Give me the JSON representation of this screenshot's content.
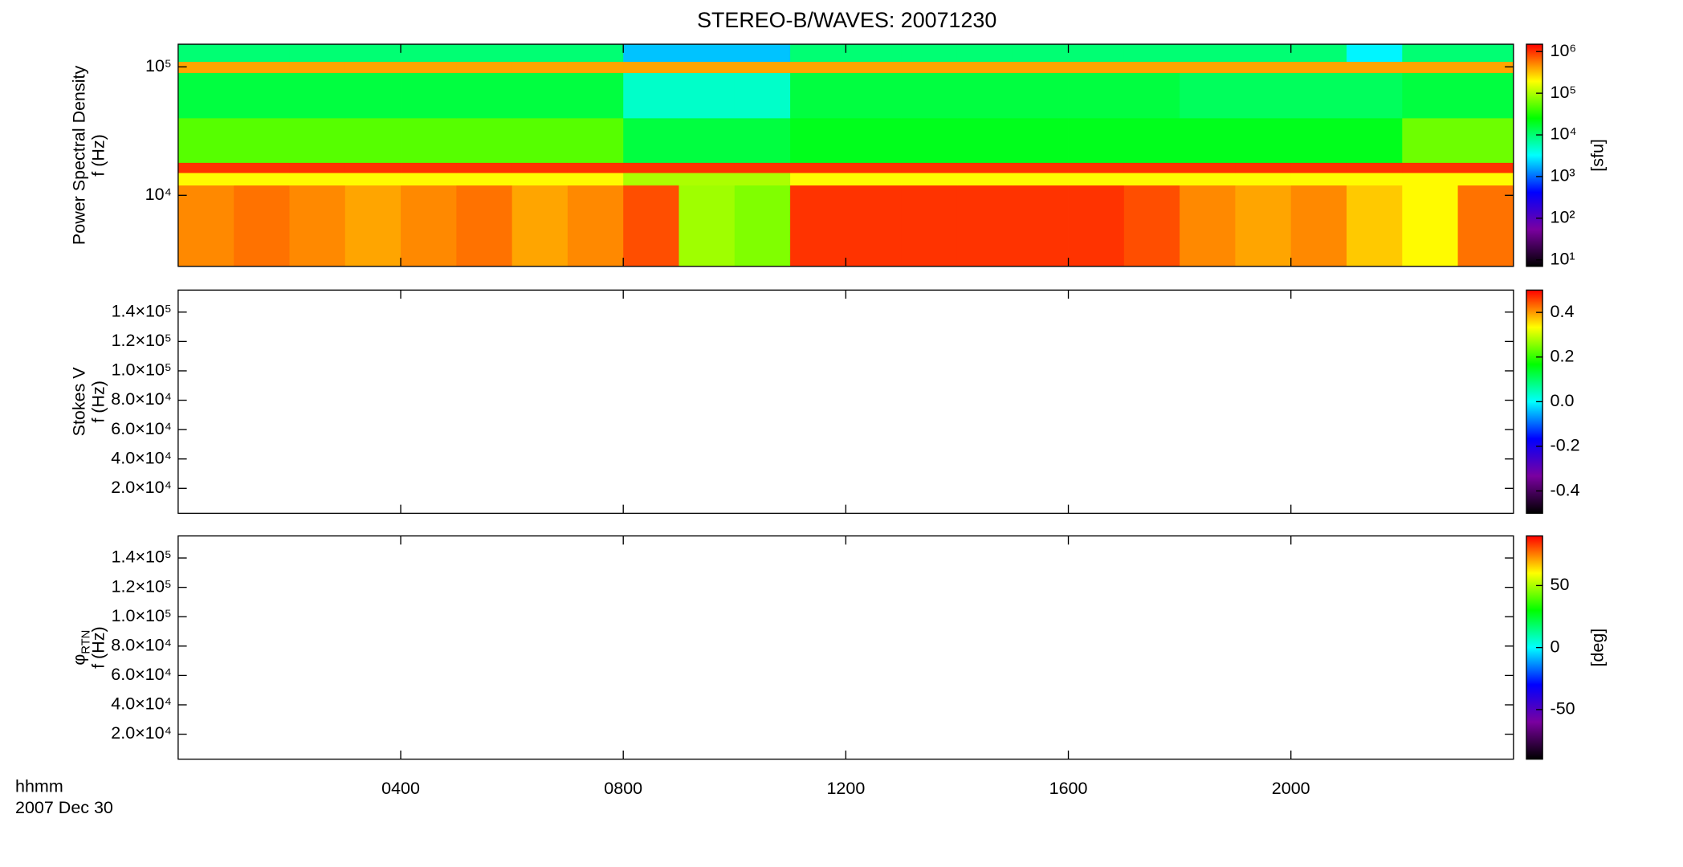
{
  "title": "STEREO-B/WAVES: 20071230",
  "x_axis": {
    "xlim": [
      0,
      24
    ],
    "xticks": [
      {
        "value": 4,
        "label": "0400"
      },
      {
        "value": 8,
        "label": "0800"
      },
      {
        "value": 12,
        "label": "1200"
      },
      {
        "value": 16,
        "label": "1600"
      },
      {
        "value": 20,
        "label": "2000"
      }
    ],
    "label": "hhmm",
    "date": "2007 Dec 30"
  },
  "colormap": [
    "#000000",
    "#7a00a0",
    "#0000ff",
    "#00ffff",
    "#00ff00",
    "#ffff00",
    "#ff0000"
  ],
  "chart_data": [
    {
      "type": "heatmap",
      "ylabel": "Power Spectral Density",
      "ylabel2": "f (Hz)",
      "ylog": true,
      "ylim": [
        2800,
        150000
      ],
      "yticks": [
        {
          "value": 10000,
          "label": "10⁴"
        },
        {
          "value": 100000,
          "label": "10⁵"
        }
      ],
      "xbins": [
        0,
        1,
        2,
        3,
        4,
        5,
        6,
        7,
        8,
        9,
        10,
        11,
        12,
        13,
        14,
        15,
        16,
        17,
        18,
        19,
        20,
        21,
        22,
        23,
        24
      ],
      "ybins": [
        2800,
        12000,
        15000,
        18000,
        40000,
        90000,
        110000,
        150000
      ],
      "values": [
        [
          500000,
          600000,
          500000,
          400000,
          500000,
          600000,
          400000,
          500000,
          800000,
          90000,
          70000,
          1000000,
          1000000,
          1000000,
          1000000,
          1000000,
          1000000,
          800000,
          500000,
          400000,
          500000,
          300000,
          200000,
          600000
        ],
        [
          200000,
          200000,
          200000,
          200000,
          200000,
          200000,
          200000,
          200000,
          100000,
          100000,
          100000,
          200000,
          200000,
          200000,
          200000,
          200000,
          200000,
          200000,
          200000,
          200000,
          200000,
          200000,
          200000,
          200000
        ],
        [
          1000000,
          1000000,
          1000000,
          1000000,
          1000000,
          1000000,
          1000000,
          1000000,
          1000000,
          1000000,
          1000000,
          1000000,
          1000000,
          1000000,
          1000000,
          1000000,
          1000000,
          1000000,
          1000000,
          1000000,
          1000000,
          1000000,
          1000000,
          1000000
        ],
        [
          50000,
          50000,
          50000,
          50000,
          50000,
          50000,
          50000,
          50000,
          15000,
          15000,
          15000,
          20000,
          20000,
          20000,
          20000,
          20000,
          20000,
          20000,
          20000,
          20000,
          20000,
          20000,
          60000,
          60000
        ],
        [
          15000,
          15000,
          15000,
          15000,
          15000,
          15000,
          15000,
          15000,
          5000,
          5000,
          5000,
          15000,
          15000,
          15000,
          15000,
          15000,
          15000,
          15000,
          12000,
          12000,
          12000,
          12000,
          15000,
          15000
        ],
        [
          400000,
          400000,
          400000,
          400000,
          400000,
          400000,
          400000,
          400000,
          400000,
          400000,
          400000,
          400000,
          400000,
          400000,
          400000,
          400000,
          400000,
          400000,
          400000,
          400000,
          400000,
          400000,
          400000,
          400000
        ],
        [
          10000,
          10000,
          10000,
          10000,
          10000,
          10000,
          10000,
          10000,
          2000,
          2000,
          2000,
          10000,
          10000,
          10000,
          10000,
          10000,
          10000,
          10000,
          10000,
          10000,
          10000,
          3000,
          10000,
          10000
        ]
      ],
      "colorbar": {
        "zlog": true,
        "zlim": [
          7,
          1500000
        ],
        "label": "[sfu]",
        "zticks": [
          {
            "value": 10,
            "label": "10¹"
          },
          {
            "value": 100,
            "label": "10²"
          },
          {
            "value": 1000,
            "label": "10³"
          },
          {
            "value": 10000,
            "label": "10⁴"
          },
          {
            "value": 100000,
            "label": "10⁵"
          },
          {
            "value": 1000000,
            "label": "10⁶"
          }
        ]
      }
    },
    {
      "type": "heatmap",
      "ylabel": "Stokes V",
      "ylabel2": "f (Hz)",
      "ylog": false,
      "ylim": [
        3000,
        155000
      ],
      "yticks": [
        {
          "value": 20000,
          "label": "2.0×10⁴"
        },
        {
          "value": 40000,
          "label": "4.0×10⁴"
        },
        {
          "value": 60000,
          "label": "6.0×10⁴"
        },
        {
          "value": 80000,
          "label": "8.0×10⁴"
        },
        {
          "value": 100000,
          "label": "1.0×10⁵"
        },
        {
          "value": 120000,
          "label": "1.2×10⁵"
        },
        {
          "value": 140000,
          "label": "1.4×10⁵"
        }
      ],
      "colorbar": {
        "zlog": false,
        "zlim": [
          -0.5,
          0.5
        ],
        "zticks": [
          -0.4,
          -0.2,
          {
            "value": 0,
            "label": "0.0"
          },
          0.2,
          0.4
        ]
      }
    },
    {
      "type": "heatmap",
      "ylabel": "φ",
      "ylabel_sub": "RTN",
      "ylabel2": "f (Hz)",
      "ylog": false,
      "ylim": [
        3000,
        155000
      ],
      "yticks": [
        {
          "value": 20000,
          "label": "2.0×10⁴"
        },
        {
          "value": 40000,
          "label": "4.0×10⁴"
        },
        {
          "value": 60000,
          "label": "6.0×10⁴"
        },
        {
          "value": 80000,
          "label": "8.0×10⁴"
        },
        {
          "value": 100000,
          "label": "1.0×10⁵"
        },
        {
          "value": 120000,
          "label": "1.2×10⁵"
        },
        {
          "value": 140000,
          "label": "1.4×10⁵"
        }
      ],
      "colorbar": {
        "zlog": false,
        "zlim": [
          -90,
          90
        ],
        "label": "[deg]",
        "zticks": [
          -50,
          0,
          50
        ]
      }
    }
  ]
}
